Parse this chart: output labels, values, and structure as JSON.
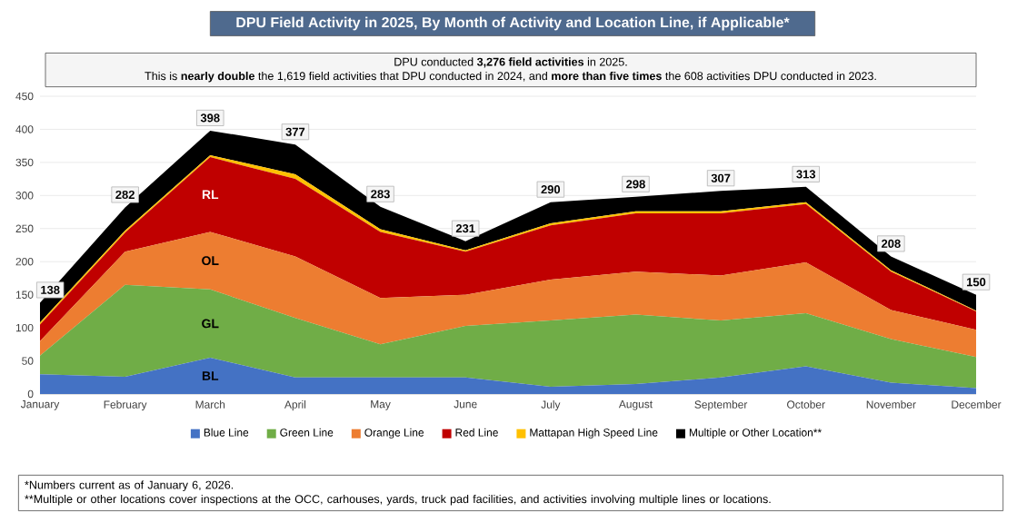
{
  "chart_data": {
    "type": "area",
    "stacked": true,
    "title": "DPU Field Activity in 2025, By Month of Activity and Location Line, if Applicable*",
    "subtitle": "DPU conducted **3,276 field activities** in 2025.",
    "categories": [
      "January",
      "February",
      "March",
      "April",
      "May",
      "June",
      "July",
      "August",
      "September",
      "October",
      "November",
      "December"
    ],
    "series": [
      {
        "name": "Blue Line",
        "color": "#4472c4",
        "values": [
          30,
          26,
          55,
          25,
          25,
          25,
          11,
          15,
          25,
          42,
          17,
          9
        ]
      },
      {
        "name": "Green Line",
        "color": "#70ad47",
        "values": [
          28,
          139,
          103,
          90,
          50,
          78,
          100,
          105,
          86,
          80,
          66,
          47
        ]
      },
      {
        "name": "Orange Line",
        "color": "#ed7d31",
        "values": [
          22,
          50,
          87,
          93,
          70,
          47,
          62,
          65,
          68,
          77,
          44,
          41
        ]
      },
      {
        "name": "Red Line",
        "color": "#c00000",
        "values": [
          25,
          29,
          113,
          117,
          100,
          65,
          82,
          88,
          94,
          88,
          58,
          28
        ]
      },
      {
        "name": "Mattapan High Speed Line",
        "color": "#ffc000",
        "values": [
          3,
          3,
          3,
          7,
          4,
          2,
          3,
          3,
          3,
          3,
          2,
          1
        ]
      },
      {
        "name": "Multiple or Other Location**",
        "color": "#000000",
        "values": [
          30,
          35,
          37,
          45,
          34,
          14,
          32,
          22,
          31,
          23,
          21,
          24
        ]
      }
    ],
    "totals": [
      "138",
      "282",
      "398",
      "377",
      "283",
      "231",
      "290",
      "298",
      "307",
      "313",
      "208",
      "150"
    ],
    "ylim": [
      0,
      450
    ],
    "yticks": [
      0,
      50,
      100,
      150,
      200,
      250,
      300,
      350,
      400,
      450
    ],
    "grid": "y",
    "legend": "bottom",
    "annotations": [
      "This is **nearly double** the 1,619 field activities that DPU conducted in 2024, and **more than five times** the 608 activities DPU conducted in 2023.",
      "BL",
      "GL",
      "OL",
      "RL",
      "*Numbers current as of January 6, 2026.",
      "**Multiple or other locations cover inspections at the OCC, carhouses, yards, truck pad facilities, and activities involving multiple lines or locations."
    ]
  }
}
